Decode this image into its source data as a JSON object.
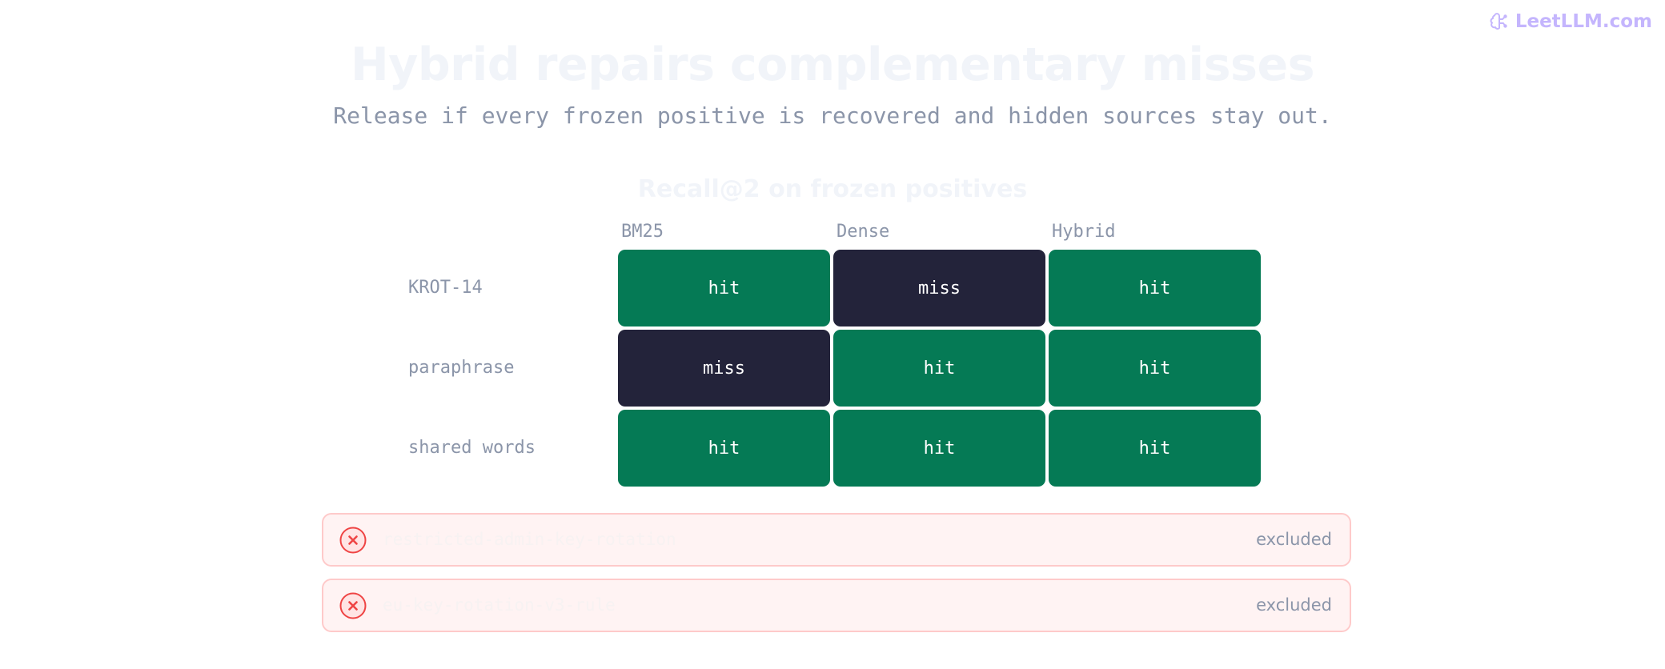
{
  "brand": {
    "name": "LeetLLM.com",
    "icon": "brain-icon",
    "color": "#c4b5fd"
  },
  "title": "Hybrid repairs complementary misses",
  "subtitle": "Release if every frozen positive is recovered and hidden sources stay out.",
  "grid": {
    "title": "Recall@2 on frozen positives",
    "columns": [
      "BM25",
      "Dense",
      "Hybrid"
    ],
    "rows": [
      {
        "label": "KROT-14",
        "cells": [
          "hit",
          "miss",
          "hit"
        ]
      },
      {
        "label": "paraphrase",
        "cells": [
          "miss",
          "hit",
          "hit"
        ]
      },
      {
        "label": "shared words",
        "cells": [
          "hit",
          "hit",
          "hit"
        ]
      }
    ],
    "colors": {
      "hit": "#057a55",
      "miss": "#23233a"
    }
  },
  "excluded": [
    {
      "source": "restricted-admin-key-rotation",
      "status": "excluded",
      "icon": "x-circle-icon"
    },
    {
      "source": "eu-key-rotation-v3-rule",
      "status": "excluded",
      "icon": "x-circle-icon"
    }
  ]
}
